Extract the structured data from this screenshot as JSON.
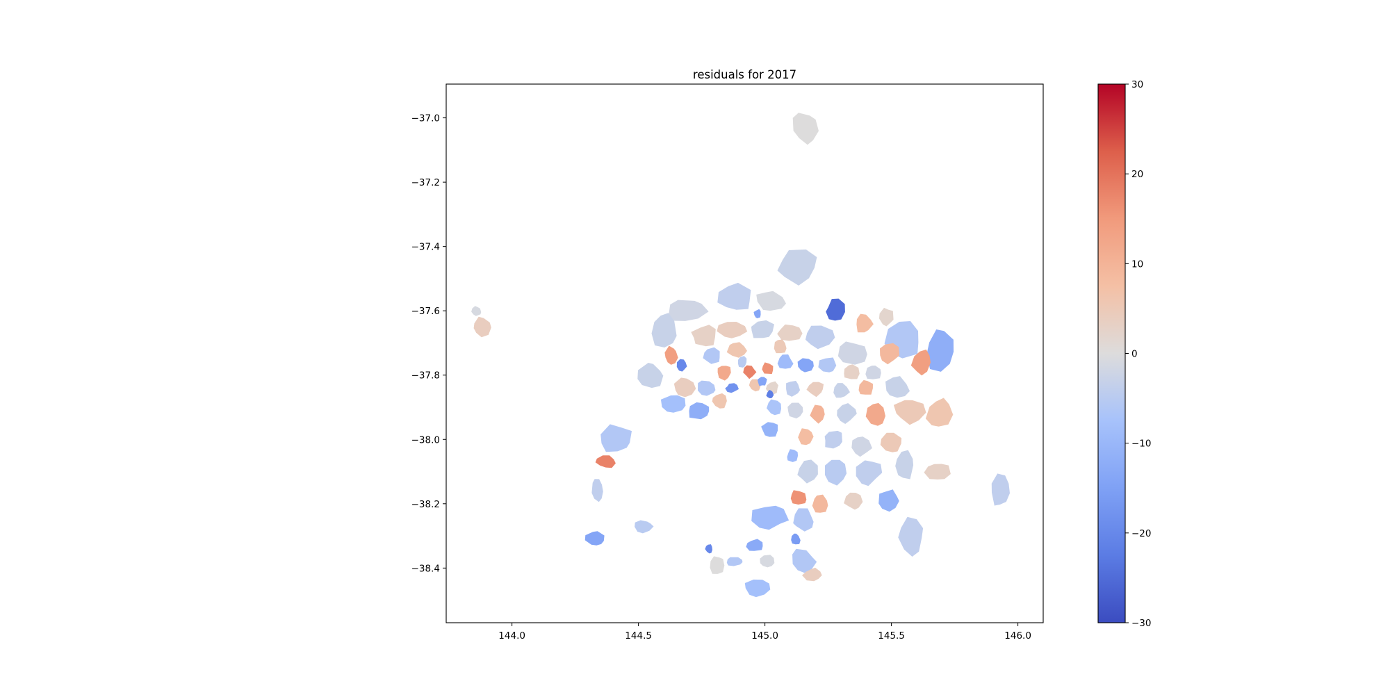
{
  "title": "residuals for 2017",
  "chart_data": {
    "type": "choropleth",
    "title": "residuals for 2017",
    "xlabel": "",
    "ylabel": "",
    "xlim": [
      143.74,
      146.1
    ],
    "ylim": [
      -38.57,
      -36.895
    ],
    "x_ticks": [
      144.0,
      144.5,
      145.0,
      145.5,
      146.0
    ],
    "x_tick_labels": [
      "144.0",
      "144.5",
      "145.0",
      "145.5",
      "146.0"
    ],
    "y_ticks": [
      -37.0,
      -37.2,
      -37.4,
      -37.6,
      -37.8,
      -38.0,
      -38.2,
      -38.4
    ],
    "y_tick_labels": [
      "−37.0",
      "−37.2",
      "−37.4",
      "−37.6",
      "−37.8",
      "−38.0",
      "−38.2",
      "−38.4"
    ],
    "colorbar": {
      "colormap": "coolwarm",
      "vmin": -30,
      "vmax": 30,
      "ticks": [
        30,
        20,
        10,
        0,
        -10,
        -20,
        -30
      ],
      "tick_labels": [
        "30",
        "20",
        "10",
        "0",
        "−10",
        "−20",
        "−30"
      ],
      "low_color": "#3b4cc0",
      "mid_color": "#dddcdc",
      "high_color": "#b40426"
    },
    "regions": [
      {
        "lon": 145.16,
        "lat": -37.03,
        "w": 0.11,
        "h": 0.1,
        "value": 0
      },
      {
        "lon": 145.13,
        "lat": -37.46,
        "w": 0.16,
        "h": 0.11,
        "value": -3
      },
      {
        "lon": 144.69,
        "lat": -37.6,
        "w": 0.17,
        "h": 0.08,
        "value": -2
      },
      {
        "lon": 144.88,
        "lat": -37.56,
        "w": 0.14,
        "h": 0.09,
        "value": -4
      },
      {
        "lon": 145.02,
        "lat": -37.57,
        "w": 0.12,
        "h": 0.07,
        "value": -1
      },
      {
        "lon": 145.28,
        "lat": -37.6,
        "w": 0.08,
        "h": 0.07,
        "value": -25
      },
      {
        "lon": 145.39,
        "lat": -37.64,
        "w": 0.07,
        "h": 0.06,
        "value": 8
      },
      {
        "lon": 145.48,
        "lat": -37.62,
        "w": 0.06,
        "h": 0.06,
        "value": 2
      },
      {
        "lon": 145.55,
        "lat": -37.69,
        "w": 0.14,
        "h": 0.12,
        "value": -6
      },
      {
        "lon": 145.69,
        "lat": -37.72,
        "w": 0.11,
        "h": 0.14,
        "value": -12
      },
      {
        "lon": 145.62,
        "lat": -37.76,
        "w": 0.08,
        "h": 0.08,
        "value": 14
      },
      {
        "lon": 145.49,
        "lat": -37.73,
        "w": 0.08,
        "h": 0.07,
        "value": 9
      },
      {
        "lon": 145.35,
        "lat": -37.73,
        "w": 0.12,
        "h": 0.07,
        "value": -2
      },
      {
        "lon": 145.21,
        "lat": -37.68,
        "w": 0.12,
        "h": 0.07,
        "value": -4
      },
      {
        "lon": 145.1,
        "lat": -37.67,
        "w": 0.1,
        "h": 0.06,
        "value": 3
      },
      {
        "lon": 144.99,
        "lat": -37.66,
        "w": 0.1,
        "h": 0.06,
        "value": -3
      },
      {
        "lon": 144.87,
        "lat": -37.66,
        "w": 0.12,
        "h": 0.06,
        "value": 4
      },
      {
        "lon": 144.76,
        "lat": -37.68,
        "w": 0.1,
        "h": 0.07,
        "value": 3
      },
      {
        "lon": 144.6,
        "lat": -37.66,
        "w": 0.1,
        "h": 0.12,
        "value": -3
      },
      {
        "lon": 144.63,
        "lat": -37.74,
        "w": 0.06,
        "h": 0.06,
        "value": 14
      },
      {
        "lon": 144.67,
        "lat": -37.77,
        "w": 0.04,
        "h": 0.04,
        "value": -20
      },
      {
        "lon": 144.55,
        "lat": -37.8,
        "w": 0.1,
        "h": 0.08,
        "value": -3
      },
      {
        "lon": 144.79,
        "lat": -37.74,
        "w": 0.08,
        "h": 0.05,
        "value": -6
      },
      {
        "lon": 144.89,
        "lat": -37.72,
        "w": 0.08,
        "h": 0.05,
        "value": 6
      },
      {
        "lon": 144.84,
        "lat": -37.79,
        "w": 0.06,
        "h": 0.05,
        "value": 12
      },
      {
        "lon": 144.94,
        "lat": -37.79,
        "w": 0.05,
        "h": 0.04,
        "value": 18
      },
      {
        "lon": 145.01,
        "lat": -37.78,
        "w": 0.05,
        "h": 0.04,
        "value": 16
      },
      {
        "lon": 145.08,
        "lat": -37.76,
        "w": 0.06,
        "h": 0.05,
        "value": -9
      },
      {
        "lon": 145.16,
        "lat": -37.77,
        "w": 0.07,
        "h": 0.05,
        "value": -14
      },
      {
        "lon": 145.25,
        "lat": -37.77,
        "w": 0.08,
        "h": 0.05,
        "value": -6
      },
      {
        "lon": 145.34,
        "lat": -37.79,
        "w": 0.07,
        "h": 0.05,
        "value": 3
      },
      {
        "lon": 145.43,
        "lat": -37.79,
        "w": 0.07,
        "h": 0.05,
        "value": -2
      },
      {
        "lon": 144.68,
        "lat": -37.84,
        "w": 0.09,
        "h": 0.06,
        "value": 4
      },
      {
        "lon": 144.77,
        "lat": -37.84,
        "w": 0.08,
        "h": 0.05,
        "value": -6
      },
      {
        "lon": 144.87,
        "lat": -37.84,
        "w": 0.05,
        "h": 0.03,
        "value": -18
      },
      {
        "lon": 144.96,
        "lat": -37.83,
        "w": 0.05,
        "h": 0.04,
        "value": 6
      },
      {
        "lon": 145.03,
        "lat": -37.84,
        "w": 0.05,
        "h": 0.04,
        "value": 2
      },
      {
        "lon": 145.11,
        "lat": -37.84,
        "w": 0.06,
        "h": 0.05,
        "value": -4
      },
      {
        "lon": 145.2,
        "lat": -37.84,
        "w": 0.07,
        "h": 0.05,
        "value": 4
      },
      {
        "lon": 145.3,
        "lat": -37.85,
        "w": 0.07,
        "h": 0.05,
        "value": -3
      },
      {
        "lon": 145.4,
        "lat": -37.84,
        "w": 0.06,
        "h": 0.05,
        "value": 9
      },
      {
        "lon": 145.52,
        "lat": -37.84,
        "w": 0.1,
        "h": 0.07,
        "value": -3
      },
      {
        "lon": 144.64,
        "lat": -37.89,
        "w": 0.1,
        "h": 0.06,
        "value": -8
      },
      {
        "lon": 144.74,
        "lat": -37.91,
        "w": 0.1,
        "h": 0.06,
        "value": -12
      },
      {
        "lon": 144.82,
        "lat": -37.88,
        "w": 0.06,
        "h": 0.05,
        "value": 6
      },
      {
        "lon": 145.04,
        "lat": -37.9,
        "w": 0.06,
        "h": 0.05,
        "value": -7
      },
      {
        "lon": 145.12,
        "lat": -37.91,
        "w": 0.06,
        "h": 0.05,
        "value": -2
      },
      {
        "lon": 145.21,
        "lat": -37.92,
        "w": 0.06,
        "h": 0.06,
        "value": 10
      },
      {
        "lon": 145.32,
        "lat": -37.92,
        "w": 0.08,
        "h": 0.06,
        "value": -3
      },
      {
        "lon": 145.44,
        "lat": -37.92,
        "w": 0.08,
        "h": 0.07,
        "value": 12
      },
      {
        "lon": 145.57,
        "lat": -37.91,
        "w": 0.12,
        "h": 0.08,
        "value": 5
      },
      {
        "lon": 145.69,
        "lat": -37.92,
        "w": 0.11,
        "h": 0.1,
        "value": 6
      },
      {
        "lon": 144.41,
        "lat": -38.0,
        "w": 0.14,
        "h": 0.09,
        "value": -6
      },
      {
        "lon": 144.37,
        "lat": -38.07,
        "w": 0.08,
        "h": 0.04,
        "value": 18
      },
      {
        "lon": 145.02,
        "lat": -37.97,
        "w": 0.07,
        "h": 0.05,
        "value": -11
      },
      {
        "lon": 145.16,
        "lat": -37.99,
        "w": 0.06,
        "h": 0.06,
        "value": 8
      },
      {
        "lon": 145.27,
        "lat": -38.0,
        "w": 0.08,
        "h": 0.06,
        "value": -4
      },
      {
        "lon": 145.38,
        "lat": -38.02,
        "w": 0.08,
        "h": 0.07,
        "value": -2
      },
      {
        "lon": 145.5,
        "lat": -38.01,
        "w": 0.08,
        "h": 0.06,
        "value": 5
      },
      {
        "lon": 145.11,
        "lat": -38.05,
        "w": 0.05,
        "h": 0.04,
        "value": -9
      },
      {
        "lon": 145.17,
        "lat": -38.1,
        "w": 0.08,
        "h": 0.07,
        "value": -3
      },
      {
        "lon": 145.28,
        "lat": -38.1,
        "w": 0.1,
        "h": 0.08,
        "value": -5
      },
      {
        "lon": 145.41,
        "lat": -38.1,
        "w": 0.1,
        "h": 0.08,
        "value": -4
      },
      {
        "lon": 145.55,
        "lat": -38.08,
        "w": 0.08,
        "h": 0.1,
        "value": -3
      },
      {
        "lon": 145.68,
        "lat": -38.1,
        "w": 0.1,
        "h": 0.06,
        "value": 3
      },
      {
        "lon": 145.93,
        "lat": -38.16,
        "w": 0.08,
        "h": 0.1,
        "value": -4
      },
      {
        "lon": 144.34,
        "lat": -38.16,
        "w": 0.05,
        "h": 0.08,
        "value": -4
      },
      {
        "lon": 145.13,
        "lat": -38.18,
        "w": 0.07,
        "h": 0.05,
        "value": 16
      },
      {
        "lon": 145.22,
        "lat": -38.2,
        "w": 0.07,
        "h": 0.06,
        "value": 9
      },
      {
        "lon": 145.35,
        "lat": -38.19,
        "w": 0.07,
        "h": 0.06,
        "value": 3
      },
      {
        "lon": 145.49,
        "lat": -38.19,
        "w": 0.09,
        "h": 0.07,
        "value": -11
      },
      {
        "lon": 145.02,
        "lat": -38.24,
        "w": 0.14,
        "h": 0.08,
        "value": -9
      },
      {
        "lon": 145.15,
        "lat": -38.25,
        "w": 0.09,
        "h": 0.07,
        "value": -6
      },
      {
        "lon": 145.58,
        "lat": -38.3,
        "w": 0.1,
        "h": 0.12,
        "value": -4
      },
      {
        "lon": 144.52,
        "lat": -38.27,
        "w": 0.08,
        "h": 0.04,
        "value": -5
      },
      {
        "lon": 144.33,
        "lat": -38.31,
        "w": 0.08,
        "h": 0.05,
        "value": -14
      },
      {
        "lon": 145.12,
        "lat": -38.31,
        "w": 0.04,
        "h": 0.04,
        "value": -16
      },
      {
        "lon": 144.96,
        "lat": -38.33,
        "w": 0.07,
        "h": 0.04,
        "value": -13
      },
      {
        "lon": 145.15,
        "lat": -38.38,
        "w": 0.1,
        "h": 0.08,
        "value": -6
      },
      {
        "lon": 145.01,
        "lat": -38.38,
        "w": 0.06,
        "h": 0.04,
        "value": -1
      },
      {
        "lon": 144.88,
        "lat": -38.38,
        "w": 0.08,
        "h": 0.03,
        "value": -6
      },
      {
        "lon": 144.81,
        "lat": -38.39,
        "w": 0.06,
        "h": 0.06,
        "value": 0
      },
      {
        "lon": 144.78,
        "lat": -38.34,
        "w": 0.03,
        "h": 0.03,
        "value": -20
      },
      {
        "lon": 144.97,
        "lat": -38.46,
        "w": 0.1,
        "h": 0.06,
        "value": -8
      },
      {
        "lon": 145.19,
        "lat": -38.42,
        "w": 0.08,
        "h": 0.04,
        "value": 4
      },
      {
        "lon": 143.88,
        "lat": -37.65,
        "w": 0.07,
        "h": 0.06,
        "value": 4
      },
      {
        "lon": 143.86,
        "lat": -37.6,
        "w": 0.04,
        "h": 0.03,
        "value": -1
      },
      {
        "lon": 144.99,
        "lat": -37.82,
        "w": 0.04,
        "h": 0.03,
        "value": -14
      },
      {
        "lon": 145.02,
        "lat": -37.86,
        "w": 0.03,
        "h": 0.03,
        "value": -22
      },
      {
        "lon": 144.91,
        "lat": -37.76,
        "w": 0.04,
        "h": 0.04,
        "value": -5
      },
      {
        "lon": 145.06,
        "lat": -37.71,
        "w": 0.05,
        "h": 0.05,
        "value": 5
      },
      {
        "lon": 144.97,
        "lat": -37.61,
        "w": 0.03,
        "h": 0.03,
        "value": -14
      }
    ]
  }
}
